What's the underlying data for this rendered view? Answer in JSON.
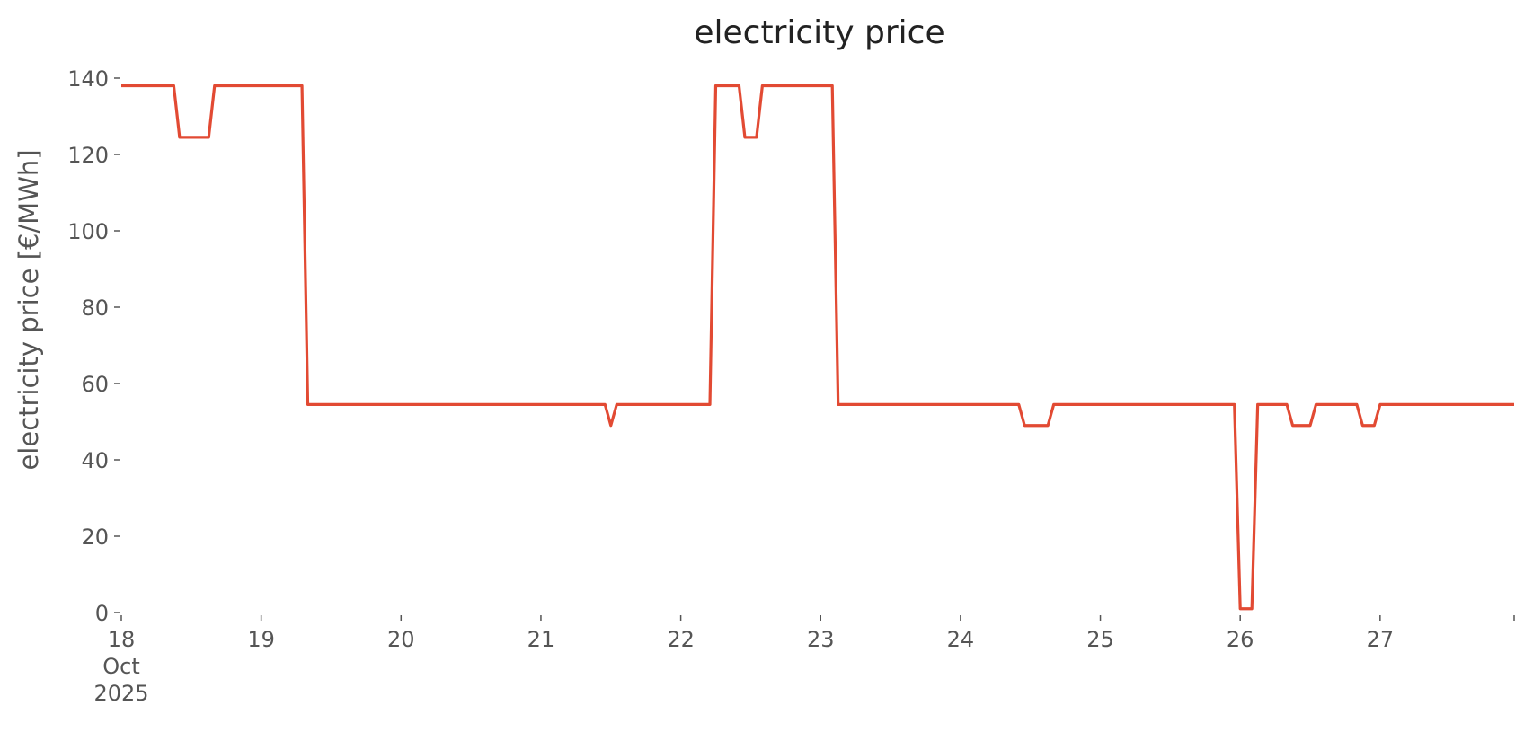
{
  "chart_data": {
    "type": "line",
    "title": "electricity price",
    "ylabel": "electricity price [€/MWh]",
    "x": [
      18,
      18.375,
      18.4167,
      18.625,
      18.6667,
      19.2917,
      19.3333,
      21.4583,
      21.5,
      21.5417,
      22.2083,
      22.25,
      22.4167,
      22.4583,
      22.5417,
      22.5833,
      23.0833,
      23.125,
      24.4167,
      24.4583,
      24.625,
      24.6667,
      25.9583,
      26,
      26.0833,
      26.125,
      26.3333,
      26.375,
      26.5,
      26.5417,
      26.8333,
      26.875,
      26.9583,
      27,
      27.9583
    ],
    "series": [
      {
        "name": "electricity price",
        "color": "#e24a33",
        "values": [
          138,
          138,
          124.5,
          124.5,
          138,
          138,
          54.5,
          54.5,
          49,
          54.5,
          54.5,
          138,
          138,
          124.5,
          124.5,
          138,
          138,
          54.5,
          54.5,
          49,
          49,
          54.5,
          54.5,
          1,
          1,
          54.5,
          54.5,
          49,
          49,
          54.5,
          54.5,
          49,
          49,
          54.5,
          54.5
        ]
      }
    ],
    "xlim": [
      18,
      27.9583
    ],
    "xticks": [
      {
        "value": 18,
        "label": "18 Oct 2025"
      },
      19,
      20,
      21,
      22,
      23,
      24,
      25,
      26,
      27
    ],
    "ylim": [
      0,
      140
    ],
    "yticks": [
      0,
      20,
      40,
      60,
      80,
      100,
      120,
      140
    ],
    "grid": false
  }
}
